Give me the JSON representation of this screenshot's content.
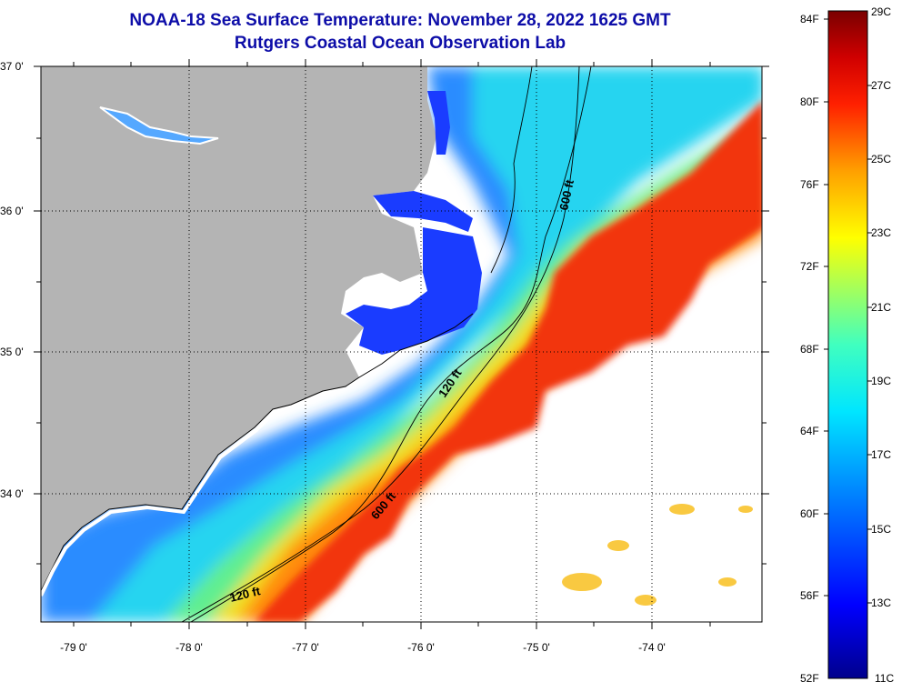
{
  "header": {
    "title": "NOAA-18 Sea Surface Temperature:  November 28, 2022 1625 GMT",
    "subtitle": "Rutgers Coastal Ocean Observation Lab"
  },
  "map": {
    "lat_ticks": [
      "37 0'",
      "36 0'",
      "35 0'",
      "34 0'"
    ],
    "lon_ticks": [
      "-79 0'",
      "-78 0'",
      "-77 0'",
      "-76 0'",
      "-75 0'",
      "-74 0'"
    ],
    "lat_range": [
      33.1,
      37.0
    ],
    "lon_range": [
      -79.3,
      -73.1
    ],
    "contour_labels": [
      "600 ft",
      "120 ft",
      "600 ft",
      "120 ft"
    ],
    "colors": {
      "land": "#b4b4b4",
      "cloud": "#ffffff"
    }
  },
  "colorbar": {
    "fahrenheit_labels": [
      "84F",
      "80F",
      "76F",
      "72F",
      "68F",
      "64F",
      "60F",
      "56F",
      "52F"
    ],
    "celsius_labels": [
      "29C",
      "27C",
      "25C",
      "23C",
      "21C",
      "19C",
      "17C",
      "15C",
      "13C",
      "11C"
    ],
    "range_c": [
      11,
      29
    ]
  }
}
